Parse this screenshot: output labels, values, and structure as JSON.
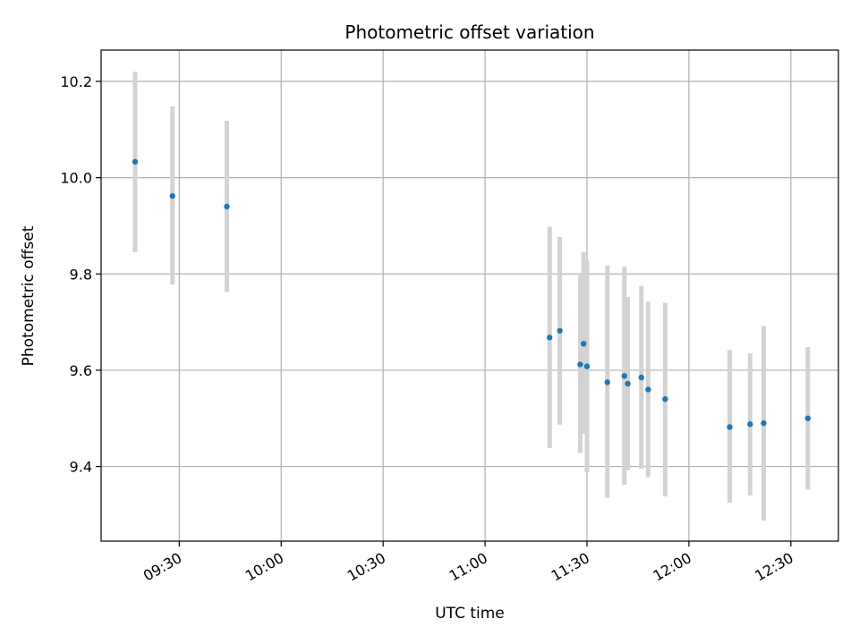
{
  "chart_data": {
    "type": "scatter",
    "title": "Photometric offset variation",
    "xlabel": "UTC time",
    "ylabel": "Photometric offset",
    "x_axis_type": "time",
    "xlim": [
      "09:07",
      "12:44"
    ],
    "ylim": [
      9.245,
      10.265
    ],
    "xticks": [
      "09:30",
      "10:00",
      "10:30",
      "11:00",
      "11:30",
      "12:00",
      "12:30"
    ],
    "yticks": [
      9.4,
      9.6,
      9.8,
      10.0,
      10.2
    ],
    "ytick_labels": [
      "9.4",
      "9.6",
      "9.8",
      "10.0",
      "10.2"
    ],
    "grid": true,
    "marker_color": "#1f77b4",
    "errorbar_color": "#d3d3d3",
    "points": [
      {
        "x": "09:17",
        "y": 10.033,
        "lo": 9.845,
        "hi": 10.22
      },
      {
        "x": "09:28",
        "y": 9.962,
        "lo": 9.778,
        "hi": 10.148
      },
      {
        "x": "09:44",
        "y": 9.94,
        "lo": 9.763,
        "hi": 10.118
      },
      {
        "x": "11:19",
        "y": 9.668,
        "lo": 9.438,
        "hi": 9.898
      },
      {
        "x": "11:22",
        "y": 9.682,
        "lo": 9.487,
        "hi": 9.877
      },
      {
        "x": "11:28",
        "y": 9.612,
        "lo": 9.428,
        "hi": 9.798
      },
      {
        "x": "11:29",
        "y": 9.655,
        "lo": 9.468,
        "hi": 9.845
      },
      {
        "x": "11:30",
        "y": 9.608,
        "lo": 9.388,
        "hi": 9.828
      },
      {
        "x": "11:36",
        "y": 9.575,
        "lo": 9.335,
        "hi": 9.818
      },
      {
        "x": "11:41",
        "y": 9.588,
        "lo": 9.362,
        "hi": 9.815
      },
      {
        "x": "11:42",
        "y": 9.572,
        "lo": 9.392,
        "hi": 9.752
      },
      {
        "x": "11:46",
        "y": 9.585,
        "lo": 9.395,
        "hi": 9.775
      },
      {
        "x": "11:48",
        "y": 9.56,
        "lo": 9.378,
        "hi": 9.742
      },
      {
        "x": "11:53",
        "y": 9.54,
        "lo": 9.338,
        "hi": 9.74
      },
      {
        "x": "12:12",
        "y": 9.482,
        "lo": 9.325,
        "hi": 9.642
      },
      {
        "x": "12:18",
        "y": 9.488,
        "lo": 9.34,
        "hi": 9.635
      },
      {
        "x": "12:22",
        "y": 9.49,
        "lo": 9.288,
        "hi": 9.692
      },
      {
        "x": "12:35",
        "y": 9.5,
        "lo": 9.352,
        "hi": 9.648
      }
    ]
  }
}
